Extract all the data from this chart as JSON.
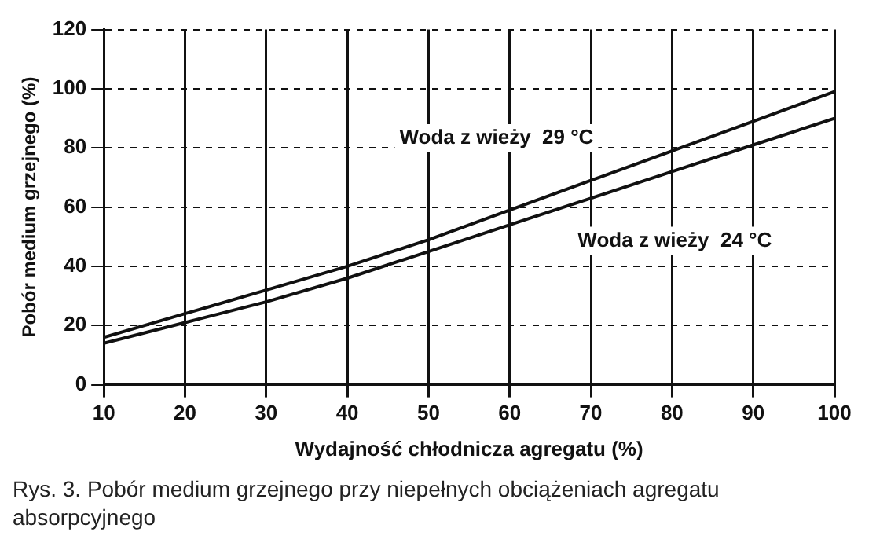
{
  "chart_data": {
    "type": "line",
    "xlabel": "Wydajność chłodnicza agregatu (%)",
    "ylabel": "Pobór medium grzejnego (%)",
    "x": [
      10,
      20,
      30,
      40,
      50,
      60,
      70,
      80,
      90,
      100
    ],
    "series": [
      {
        "name": "Woda z wieży  29 °C",
        "color": "#111111",
        "values": [
          16,
          24,
          32,
          40,
          49,
          59,
          69,
          79,
          89,
          99
        ]
      },
      {
        "name": "Woda z wieży  24 °C",
        "color": "#111111",
        "values": [
          14,
          21,
          28,
          36,
          45,
          54,
          63,
          72,
          81,
          90
        ]
      }
    ],
    "xlim": [
      10,
      100
    ],
    "xticks": [
      10,
      20,
      30,
      40,
      50,
      60,
      70,
      80,
      90,
      100
    ],
    "ylim": [
      0,
      120
    ],
    "yticks": [
      0,
      20,
      40,
      60,
      80,
      100,
      120
    ],
    "grid": true,
    "legend": false,
    "marker": "none",
    "line_style": "solid",
    "annotations": [
      "Rys. 3. Pobór medium grzejnego przy niepełnych obciążeniach agregatu absorpcyjnego"
    ]
  }
}
